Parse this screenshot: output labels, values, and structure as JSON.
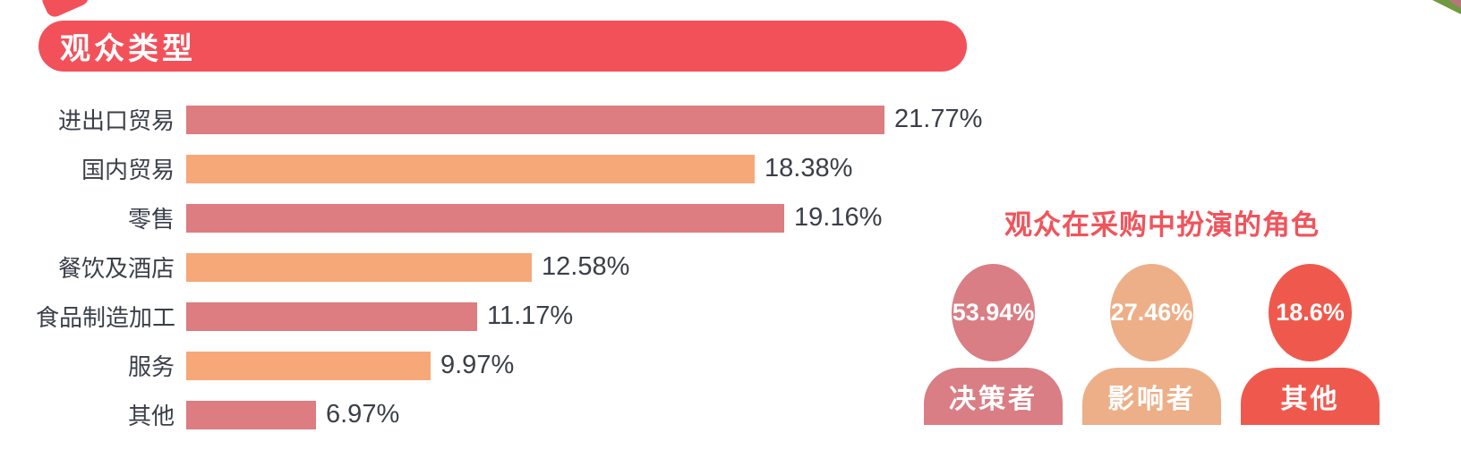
{
  "header": {
    "title": "观众类型",
    "bg_color": "#F2515A",
    "text_color": "#FFFFFF"
  },
  "colors": {
    "rose": "#DD7C81",
    "orange": "#F6A878",
    "text_dark": "#3A3F49",
    "accent_red": "#F0545C"
  },
  "decorations": {
    "top_left": "red-ribbon-fragment",
    "top_right": "photo-corner-fragment",
    "top_right_green": "#6F9A3F",
    "top_right_pink": "#B8767C"
  },
  "chart_data": [
    {
      "type": "bar",
      "orientation": "horizontal",
      "title": "观众类型",
      "categories": [
        "进出口贸易",
        "国内贸易",
        "零售",
        "餐饮及酒店",
        "食品制造加工",
        "服务",
        "其他"
      ],
      "values": [
        21.77,
        18.38,
        19.16,
        12.58,
        11.17,
        9.97,
        6.97
      ],
      "value_labels": [
        "21.77%",
        "18.38%",
        "19.16%",
        "12.58%",
        "11.17%",
        "9.97%",
        "6.97%"
      ],
      "bar_colors": [
        "#DD7C81",
        "#F6A878",
        "#DD7C81",
        "#F6A878",
        "#DD7C81",
        "#F6A878",
        "#DD7C81"
      ],
      "xlim": [
        3.6,
        22.0
      ],
      "grid": false,
      "legend": "none"
    },
    {
      "type": "bar",
      "style": "person-pictogram",
      "title": "观众在采购中扮演的角色",
      "categories": [
        "决策者",
        "影响者",
        "其他"
      ],
      "values": [
        53.94,
        27.46,
        18.6
      ],
      "value_labels": [
        "53.94%",
        "27.46%",
        "18.6%"
      ],
      "colors": [
        "#D97E84",
        "#EDAF88",
        "#EF594D"
      ]
    }
  ]
}
